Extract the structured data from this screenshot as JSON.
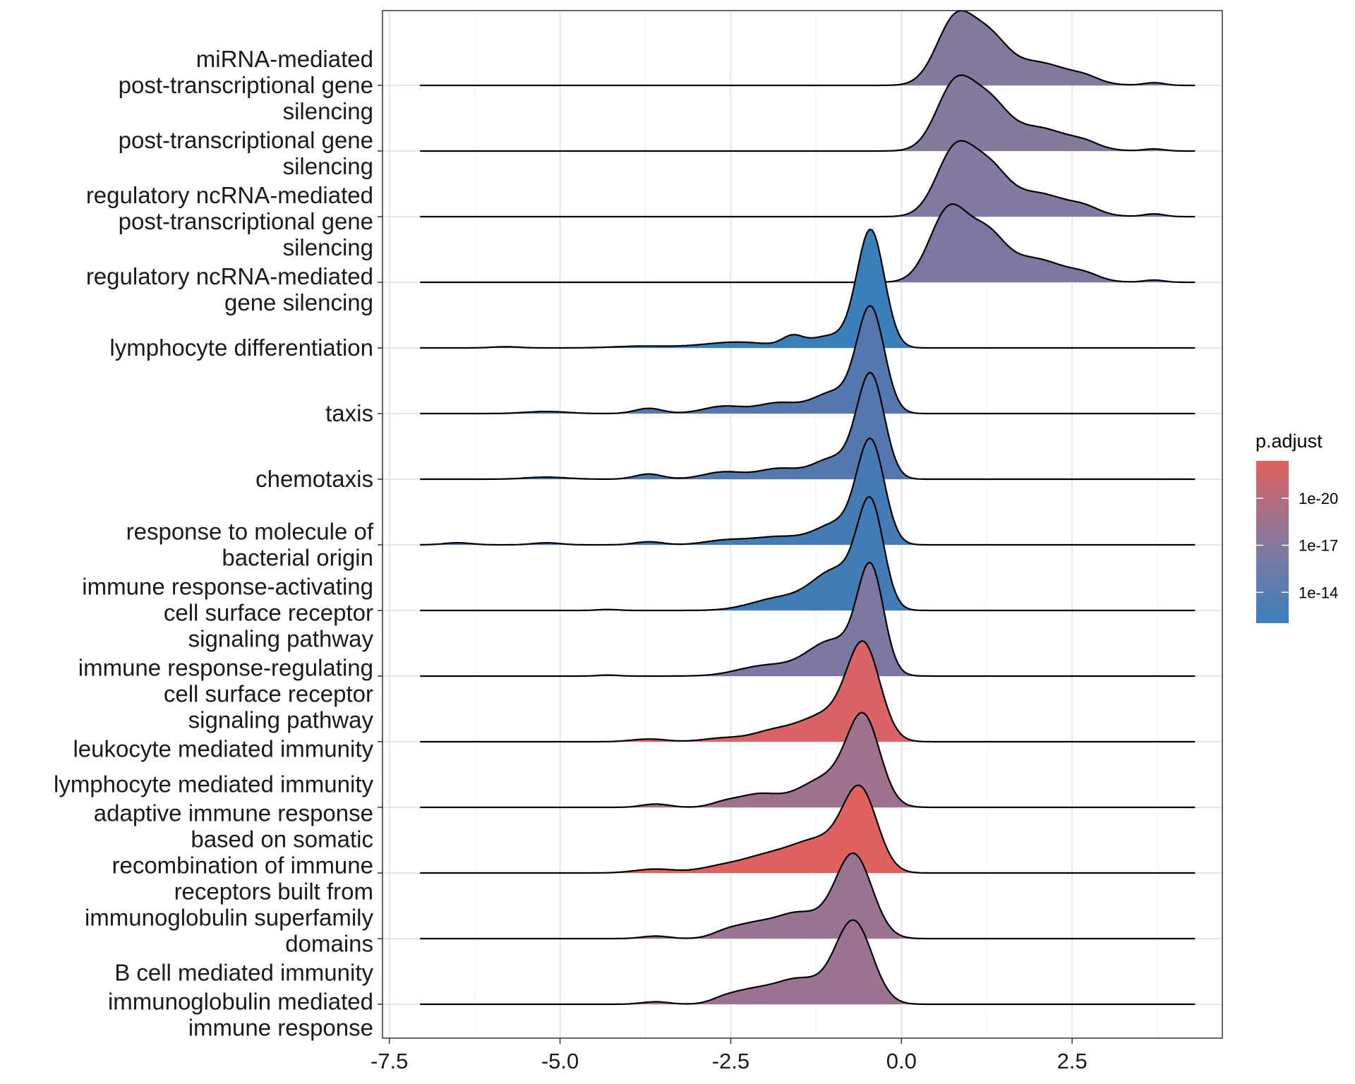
{
  "chart_data": {
    "type": "ridgeline",
    "title": "",
    "xlabel": "",
    "ylabel": "",
    "xlim": [
      -7.6,
      4.7
    ],
    "x_ticks": [
      -7.5,
      -5.0,
      -2.5,
      0.0,
      2.5
    ],
    "x_tick_labels": [
      "-7.5",
      "-5.0",
      "-2.5",
      "0.0",
      "2.5"
    ],
    "x_range_density": [
      -7.05,
      4.3
    ],
    "grid": true,
    "legend": {
      "title": "p.adjust",
      "placement": "right",
      "tick_labels": [
        "1e-20",
        "1e-17",
        "1e-14"
      ],
      "tick_fraction_from_bottom": [
        0.77,
        0.48,
        0.19
      ],
      "color_high": "#e0625f",
      "color_low": "#3a80bb"
    },
    "series": [
      {
        "label": [
          "miRNA-mediated",
          "post-transcriptional gene",
          "silencing"
        ],
        "color": "#85799e",
        "rel_peak": 0.63,
        "components": [
          [
            0.8,
            0.28,
            1
          ],
          [
            1.3,
            0.25,
            0.5
          ],
          [
            1.95,
            0.5,
            0.35
          ],
          [
            2.7,
            0.2,
            0.06
          ],
          [
            3.7,
            0.15,
            0.04
          ]
        ]
      },
      {
        "label": [
          "post-transcriptional gene",
          "silencing"
        ],
        "color": "#85799e",
        "rel_peak": 0.64,
        "components": [
          [
            0.8,
            0.28,
            1
          ],
          [
            1.3,
            0.25,
            0.5
          ],
          [
            1.95,
            0.5,
            0.35
          ],
          [
            2.7,
            0.2,
            0.06
          ],
          [
            3.7,
            0.15,
            0.03
          ]
        ]
      },
      {
        "label": [
          "regulatory ncRNA-mediated",
          "post-transcriptional gene",
          "silencing"
        ],
        "color": "#84799f",
        "rel_peak": 0.64,
        "components": [
          [
            0.8,
            0.28,
            1
          ],
          [
            1.3,
            0.25,
            0.5
          ],
          [
            1.95,
            0.5,
            0.35
          ],
          [
            2.7,
            0.2,
            0.07
          ],
          [
            3.7,
            0.15,
            0.04
          ]
        ]
      },
      {
        "label": [
          "regulatory ncRNA-mediated",
          "gene silencing"
        ],
        "color": "#7b77a1",
        "rel_peak": 0.66,
        "components": [
          [
            0.7,
            0.28,
            1
          ],
          [
            1.25,
            0.25,
            0.5
          ],
          [
            1.9,
            0.5,
            0.33
          ],
          [
            2.7,
            0.2,
            0.06
          ],
          [
            3.7,
            0.15,
            0.03
          ]
        ]
      },
      {
        "label": [
          "lymphocyte differentiation"
        ],
        "color": "#3a80bb",
        "rel_peak": 1.0,
        "components": [
          [
            -0.45,
            0.2,
            1
          ],
          [
            -1.05,
            0.3,
            0.1
          ],
          [
            -1.6,
            0.15,
            0.08
          ],
          [
            -2.4,
            0.5,
            0.05
          ],
          [
            -3.8,
            0.4,
            0.015
          ],
          [
            -5.8,
            0.2,
            0.01
          ]
        ]
      },
      {
        "label": [
          "taxis"
        ],
        "color": "#5478ae",
        "rel_peak": 0.91,
        "components": [
          [
            -0.45,
            0.2,
            1
          ],
          [
            -1.0,
            0.3,
            0.2
          ],
          [
            -1.8,
            0.3,
            0.1
          ],
          [
            -2.6,
            0.3,
            0.07
          ],
          [
            -3.7,
            0.2,
            0.05
          ],
          [
            -5.2,
            0.3,
            0.02
          ]
        ]
      },
      {
        "label": [
          "chemotaxis"
        ],
        "color": "#5478ae",
        "rel_peak": 0.9,
        "components": [
          [
            -0.45,
            0.2,
            1
          ],
          [
            -1.0,
            0.3,
            0.2
          ],
          [
            -1.8,
            0.3,
            0.1
          ],
          [
            -2.6,
            0.3,
            0.07
          ],
          [
            -3.7,
            0.2,
            0.05
          ],
          [
            -5.2,
            0.3,
            0.02
          ]
        ]
      },
      {
        "label": [
          "response to molecule of",
          "bacterial origin"
        ],
        "color": "#467cb6",
        "rel_peak": 0.9,
        "components": [
          [
            -0.45,
            0.2,
            1
          ],
          [
            -0.95,
            0.3,
            0.2
          ],
          [
            -1.8,
            0.4,
            0.08
          ],
          [
            -2.6,
            0.3,
            0.04
          ],
          [
            -3.7,
            0.2,
            0.03
          ],
          [
            -5.2,
            0.2,
            0.02
          ],
          [
            -6.5,
            0.2,
            0.02
          ]
        ]
      },
      {
        "label": [
          "immune response-activating",
          "cell surface receptor",
          "signaling pathway"
        ],
        "color": "#427db8",
        "rel_peak": 0.96,
        "components": [
          [
            -0.45,
            0.19,
            1
          ],
          [
            -0.95,
            0.35,
            0.4
          ],
          [
            -1.8,
            0.4,
            0.12
          ],
          [
            -4.3,
            0.15,
            0.01
          ]
        ]
      },
      {
        "label": [
          "immune response-regulating",
          "cell surface receptor",
          "signaling pathway"
        ],
        "color": "#7e77a2",
        "rel_peak": 0.96,
        "components": [
          [
            -0.45,
            0.19,
            1
          ],
          [
            -1.0,
            0.38,
            0.35
          ],
          [
            -2.0,
            0.4,
            0.1
          ],
          [
            -4.3,
            0.15,
            0.01
          ]
        ]
      },
      {
        "label": [
          "leukocyte mediated immunity"
        ],
        "color": "#d96468",
        "rel_peak": 0.85,
        "components": [
          [
            -0.55,
            0.24,
            1
          ],
          [
            -1.1,
            0.4,
            0.3
          ],
          [
            -1.9,
            0.3,
            0.1
          ],
          [
            -2.6,
            0.3,
            0.04
          ],
          [
            -3.7,
            0.25,
            0.03
          ]
        ]
      },
      {
        "label": [
          "lymphocyte mediated immunity"
        ],
        "color": "#a0728e",
        "rel_peak": 0.8,
        "components": [
          [
            -0.55,
            0.24,
            1
          ],
          [
            -1.1,
            0.4,
            0.35
          ],
          [
            -2.1,
            0.3,
            0.15
          ],
          [
            -2.6,
            0.2,
            0.05
          ],
          [
            -3.6,
            0.2,
            0.04
          ]
        ]
      },
      {
        "label": [
          "adaptive immune response",
          "based on somatic",
          "recombination of immune",
          "receptors built from",
          "immunoglobulin superfamily",
          "domains"
        ],
        "color": "#e0625f",
        "rel_peak": 0.74,
        "components": [
          [
            -0.6,
            0.25,
            1
          ],
          [
            -1.2,
            0.4,
            0.4
          ],
          [
            -2.0,
            0.4,
            0.2
          ],
          [
            -2.7,
            0.3,
            0.06
          ],
          [
            -3.6,
            0.3,
            0.05
          ]
        ]
      },
      {
        "label": [
          "B cell mediated immunity"
        ],
        "color": "#9a7494",
        "rel_peak": 0.72,
        "components": [
          [
            -0.7,
            0.27,
            1
          ],
          [
            -1.5,
            0.35,
            0.3
          ],
          [
            -2.2,
            0.3,
            0.15
          ],
          [
            -2.6,
            0.2,
            0.05
          ],
          [
            -3.6,
            0.2,
            0.03
          ]
        ]
      },
      {
        "label": [
          "immunoglobulin mediated",
          "immune response"
        ],
        "color": "#9c7392",
        "rel_peak": 0.71,
        "components": [
          [
            -0.7,
            0.27,
            1
          ],
          [
            -1.5,
            0.35,
            0.3
          ],
          [
            -2.2,
            0.3,
            0.15
          ],
          [
            -2.6,
            0.2,
            0.05
          ],
          [
            -3.6,
            0.2,
            0.03
          ]
        ]
      }
    ]
  }
}
